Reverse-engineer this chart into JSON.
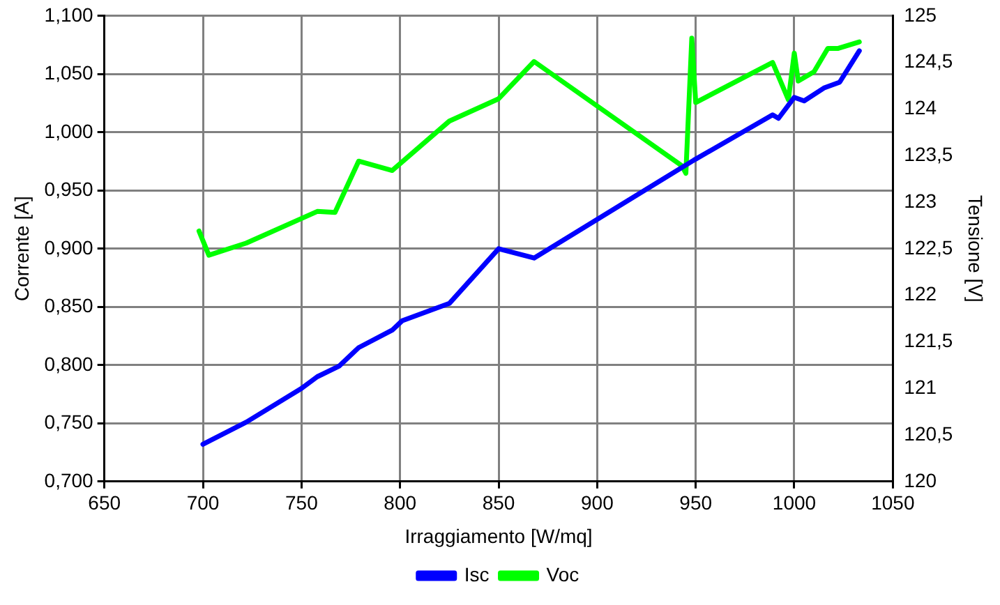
{
  "chart_data": {
    "type": "line",
    "xlabel": "Irraggiamento [W/mq]",
    "ylabel": "Corrente [A]",
    "y2label": "Tensione [V]",
    "xlim": [
      650,
      1050
    ],
    "xticks": [
      650,
      700,
      750,
      800,
      850,
      900,
      950,
      1000,
      1050
    ],
    "ylim": [
      0.7,
      1.1
    ],
    "yticks": [
      {
        "value": 0.7,
        "label": "0,700"
      },
      {
        "value": 0.75,
        "label": "0,750"
      },
      {
        "value": 0.8,
        "label": "0,800"
      },
      {
        "value": 0.85,
        "label": "0,850"
      },
      {
        "value": 0.9,
        "label": "0,900"
      },
      {
        "value": 0.95,
        "label": "0,950"
      },
      {
        "value": 1.0,
        "label": "1,000"
      },
      {
        "value": 1.05,
        "label": "1,050"
      },
      {
        "value": 1.1,
        "label": "1,100"
      }
    ],
    "y2lim": [
      120,
      125
    ],
    "y2ticks": [
      120,
      {
        "value": 120.5,
        "label": "120,5"
      },
      121,
      {
        "value": 121.5,
        "label": "121,5"
      },
      122,
      {
        "value": 122.5,
        "label": "122,5"
      },
      123,
      {
        "value": 123.5,
        "label": "123,5"
      },
      124,
      {
        "value": 124.5,
        "label": "124,5"
      },
      125
    ],
    "grid": true,
    "legend": "bottom",
    "marker": "none",
    "line_style": "solid",
    "series": [
      {
        "name": "Isc",
        "color": "#0000ff",
        "x": [
          700,
          722,
          750,
          758,
          769,
          779,
          796,
          801,
          825,
          850,
          868,
          949,
          989,
          992,
          1000,
          1005,
          1015,
          1023,
          1033
        ],
        "values": [
          0.732,
          0.751,
          0.78,
          0.79,
          0.799,
          0.815,
          0.83,
          0.838,
          0.853,
          0.9,
          0.892,
          0.976,
          1.015,
          1.012,
          1.03,
          1.027,
          1.038,
          1.043,
          1.07
        ]
      },
      {
        "name": "Voc",
        "color": "#00ff00",
        "axis": "y2",
        "x": [
          698,
          703,
          722,
          758,
          767,
          779,
          796,
          825,
          850,
          868,
          943,
          945,
          948,
          950,
          989,
          997,
          1000,
          1002,
          1010,
          1017,
          1022,
          1033
        ],
        "values": [
          122.69,
          122.43,
          122.56,
          122.9,
          122.89,
          123.44,
          123.34,
          123.87,
          124.11,
          124.51,
          123.39,
          123.31,
          124.76,
          124.07,
          124.5,
          124.1,
          124.6,
          124.3,
          124.4,
          124.65,
          124.65,
          124.72
        ]
      }
    ]
  }
}
